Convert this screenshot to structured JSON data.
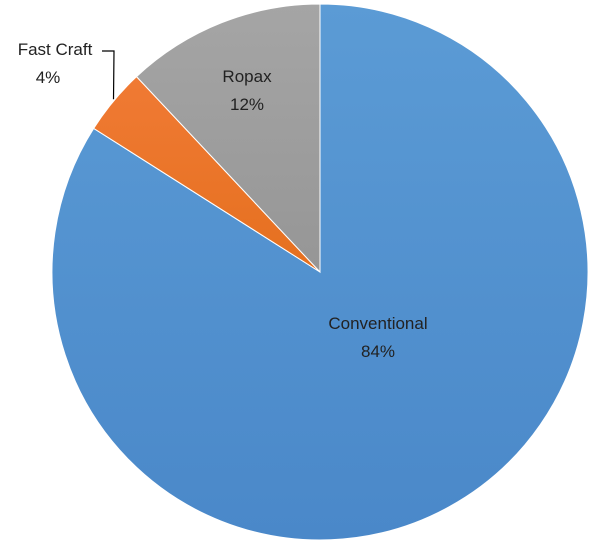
{
  "chart_data": {
    "type": "pie",
    "slices": [
      {
        "name": "Conventional",
        "value": 84,
        "label": "84%",
        "color": "#5b9bd5",
        "gradient_to": "#4a88c9"
      },
      {
        "name": "Fast Craft",
        "value": 4,
        "label": "4%",
        "color": "#f07a34",
        "gradient_to": "#e5701f"
      },
      {
        "name": "Ropax",
        "value": 12,
        "label": "12%",
        "color": "#a5a5a5",
        "gradient_to": "#969696"
      }
    ],
    "start_angle_deg": 0,
    "direction": "clockwise",
    "legend": "none"
  }
}
